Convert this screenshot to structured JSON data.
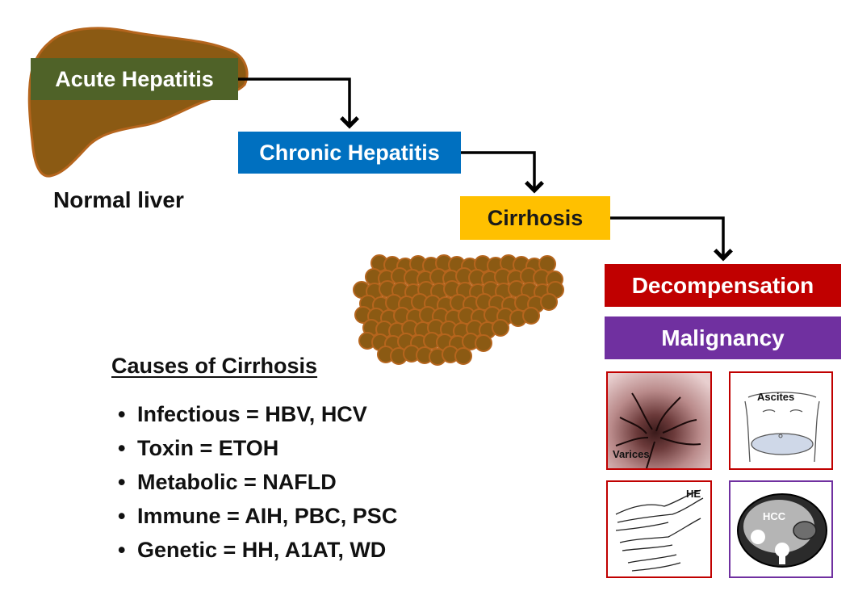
{
  "stages": {
    "acute": "Acute Hepatitis",
    "chronic": "Chronic Hepatitis",
    "cirrhosis": "Cirrhosis",
    "decompensation": "Decompensation",
    "malignancy": "Malignancy"
  },
  "normal_liver_label": "Normal liver",
  "causes": {
    "title": "Causes of Cirrhosis",
    "items": [
      "Infectious = HBV, HCV",
      "Toxin = ETOH",
      "Metabolic = NAFLD",
      "Immune = AIH, PBC, PSC",
      "Genetic = HH, A1AT, WD"
    ]
  },
  "panels": {
    "varices": "Varices",
    "ascites": "Ascites",
    "he": "HE",
    "hcc": "HCC"
  },
  "colors": {
    "acute": "#4f6228",
    "chronic": "#0070c0",
    "cirrhosis": "#ffc000",
    "decompensation": "#c00000",
    "malignancy": "#7030a0",
    "liver": "#8b5a13",
    "liver_outline": "#b5651d",
    "nodule": "#8b5a13"
  }
}
